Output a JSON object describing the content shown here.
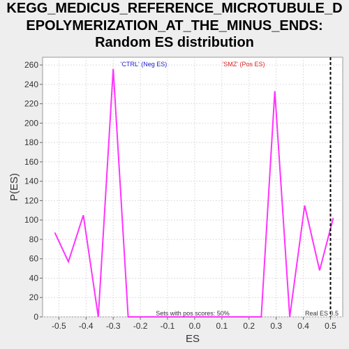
{
  "chart_data": {
    "type": "line",
    "title_lines": [
      "KEGG_MEDICUS_REFERENCE_MICROTUBULE_D",
      "EPOLYMERIZATION_AT_THE_MINUS_ENDS:",
      "Random ES distribution"
    ],
    "xlabel": "ES",
    "ylabel": "P(ES)",
    "xlim": [
      -0.56,
      0.545
    ],
    "ylim": [
      0,
      268
    ],
    "xticks": [
      -0.5,
      -0.4,
      -0.3,
      -0.2,
      -0.1,
      0.0,
      0.1,
      0.2,
      0.3,
      0.4,
      0.5
    ],
    "xtick_labels": [
      "-0.5",
      "-0.4",
      "-0.3",
      "-0.2",
      "-0.1",
      "0.0",
      "0.1",
      "0.2",
      "0.3",
      "0.4",
      "0.5"
    ],
    "yticks": [
      0,
      20,
      40,
      60,
      80,
      100,
      120,
      140,
      160,
      180,
      200,
      220,
      240,
      260
    ],
    "ytick_labels": [
      "0",
      "20",
      "40",
      "60",
      "80",
      "100",
      "120",
      "140",
      "160",
      "180",
      "200",
      "220",
      "240",
      "260"
    ],
    "grid": true,
    "series": [
      {
        "color": "#ff33ff",
        "x": [
          -0.515,
          -0.465,
          -0.41,
          -0.355,
          -0.3,
          -0.245,
          -0.19,
          -0.135,
          -0.08,
          -0.025,
          0.03,
          0.085,
          0.14,
          0.195,
          0.245,
          0.295,
          0.35,
          0.405,
          0.46,
          0.51
        ],
        "y": [
          87,
          57,
          105,
          0,
          256,
          0,
          0,
          0,
          0,
          0,
          0,
          0,
          0,
          0,
          0,
          233,
          0,
          115,
          48,
          102
        ]
      }
    ],
    "real_es_x": 0.5,
    "annotations": {
      "neg": "'CTRL' (Neg ES)",
      "pos": "'SMZ' (Pos ES)",
      "sets_pos": "Sets with pos scores: 50%",
      "real_es": "Real ES 0.5"
    },
    "colors": {
      "neg": "#2222cc",
      "pos": "#dd2222",
      "line": "#ff33ff",
      "real_es": "#000000"
    }
  }
}
